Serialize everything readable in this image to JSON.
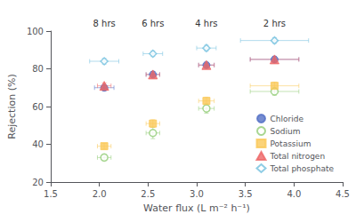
{
  "chart_data": {
    "type": "scatter",
    "xlabel": "Water flux (L m⁻² h⁻¹)",
    "ylabel": "Rejection (%)",
    "xlim": [
      1.5,
      4.5
    ],
    "ylim": [
      20,
      100
    ],
    "xticks": [
      1.5,
      {
        "value": 2.0,
        "label": "2.0"
      },
      2.5,
      {
        "value": 3.0,
        "label": "3.0"
      },
      3.5,
      {
        "value": 4.0,
        "label": "4.0"
      },
      4.5
    ],
    "yticks": [
      20,
      40,
      60,
      80,
      100
    ],
    "grid": false,
    "legend": "lower right",
    "annotations": [
      {
        "text": "8 hrs",
        "x": 2.05
      },
      {
        "text": "6 hrs",
        "x": 2.55
      },
      {
        "text": "4 hrs",
        "x": 3.1
      },
      {
        "text": "2 hrs",
        "x": 3.8
      }
    ],
    "series": [
      {
        "name": "Chloride",
        "marker": "circle",
        "x": [
          2.05,
          2.55,
          3.1,
          3.8
        ],
        "values": [
          70,
          77,
          82,
          85
        ],
        "xerr": [
          0.1,
          0.07,
          0.08,
          0.25
        ],
        "yerr": [
          1.5,
          1.5,
          1.0,
          1.5
        ]
      },
      {
        "name": "Sodium",
        "marker": "open-circle",
        "x": [
          2.05,
          2.55,
          3.1,
          3.8
        ],
        "values": [
          33,
          46,
          59,
          68
        ],
        "xerr": [
          0.07,
          0.07,
          0.08,
          0.25
        ],
        "yerr": [
          1.5,
          3.0,
          2.5,
          2.0
        ]
      },
      {
        "name": "Potassium",
        "marker": "square",
        "x": [
          2.05,
          2.55,
          3.1,
          3.8
        ],
        "values": [
          39,
          51,
          63,
          71
        ],
        "xerr": [
          0.07,
          0.07,
          0.08,
          0.25
        ],
        "yerr": [
          1.5,
          2.0,
          2.0,
          2.0
        ]
      },
      {
        "name": "Total nitrogen",
        "marker": "triangle",
        "x": [
          2.05,
          2.55,
          3.1,
          3.8
        ],
        "values": [
          71,
          77,
          82,
          85
        ],
        "xerr": [
          0.07,
          0.07,
          0.08,
          0.25
        ],
        "yerr": [
          1.5,
          1.5,
          1.0,
          1.5
        ]
      },
      {
        "name": "Total phosphate",
        "marker": "open-diamond",
        "x": [
          2.05,
          2.55,
          3.1,
          3.8
        ],
        "values": [
          84,
          88,
          91,
          95
        ],
        "xerr": [
          0.15,
          0.1,
          0.1,
          0.35
        ],
        "yerr": [
          1.5,
          1.5,
          1.5,
          1.5
        ]
      }
    ]
  }
}
